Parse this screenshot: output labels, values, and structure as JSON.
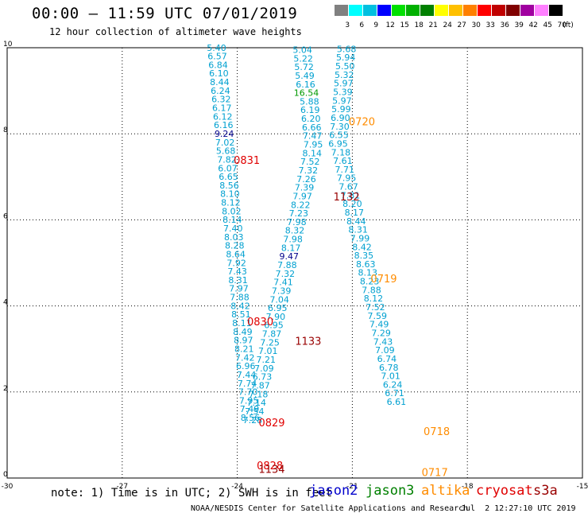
{
  "header": {
    "title": "00:00 – 11:59 UTC 07/01/2019",
    "subtitle": "12 hour collection of altimeter wave heights"
  },
  "colorbar": {
    "unit": "(ft)",
    "colors": [
      "#808080",
      "#00ffff",
      "#00c0e0",
      "#0000ff",
      "#00e000",
      "#00b000",
      "#008000",
      "#ffff00",
      "#ffc000",
      "#ff8000",
      "#ff0000",
      "#c00000",
      "#800000",
      "#a000a0",
      "#ff80ff",
      "#000000"
    ],
    "labels": [
      "3",
      "6",
      "9",
      "12",
      "15",
      "18",
      "21",
      "24",
      "27",
      "30",
      "33",
      "36",
      "39",
      "42",
      "45",
      "70"
    ]
  },
  "footer": {
    "note": "note: 1) Time is in UTC; 2) SWH is in feet",
    "legend": [
      {
        "name": "jason2",
        "color": "#0000cc"
      },
      {
        "name": "jason3",
        "color": "#008000"
      },
      {
        "name": "altika",
        "color": "#ff8c00"
      },
      {
        "name": "cryosat",
        "color": "#e00000"
      },
      {
        "name": "s3a",
        "color": "#990000"
      }
    ],
    "credit": "NOAA/NESDIS Center for Satellite Applications and Research",
    "timestamp": "Jul  2 12:27:10 UTC 2019"
  },
  "chart_data": {
    "type": "scatter",
    "title": "00:00 – 11:59 UTC 07/01/2019",
    "xlim": [
      -30,
      -15
    ],
    "ylim": [
      0,
      10
    ],
    "grid": true,
    "x_ticks": [
      "-30",
      "-27",
      "-24",
      "-21",
      "-18",
      "-15"
    ],
    "y_ticks": [
      "0",
      "2",
      "4",
      "6",
      "8",
      "10"
    ],
    "tracks": [
      {
        "name": "track-a",
        "points": [
          {
            "x": -24.54,
            "y": 9.93,
            "v": "5.40"
          },
          {
            "x": -24.52,
            "y": 9.73,
            "v": "6.57"
          },
          {
            "x": -24.5,
            "y": 9.53,
            "v": "6.84"
          },
          {
            "x": -24.48,
            "y": 9.33,
            "v": "6.10"
          },
          {
            "x": -24.46,
            "y": 9.13,
            "v": "8.44"
          },
          {
            "x": -24.44,
            "y": 8.93,
            "v": "6.24"
          },
          {
            "x": -24.42,
            "y": 8.73,
            "v": "6.32"
          },
          {
            "x": -24.4,
            "y": 8.53,
            "v": "6.17"
          },
          {
            "x": -24.38,
            "y": 8.33,
            "v": "6.12"
          },
          {
            "x": -24.36,
            "y": 8.13,
            "v": "6.16"
          },
          {
            "x": -24.34,
            "y": 7.93,
            "v": "9.24",
            "c": "#00008b"
          },
          {
            "x": -24.32,
            "y": 7.73,
            "v": "7.02"
          },
          {
            "x": -24.3,
            "y": 7.53,
            "v": "5.68"
          },
          {
            "x": -24.27,
            "y": 7.33,
            "v": "7.82"
          },
          {
            "x": -24.25,
            "y": 7.13,
            "v": "6.07"
          },
          {
            "x": -24.23,
            "y": 6.93,
            "v": "6.65"
          },
          {
            "x": -24.21,
            "y": 6.73,
            "v": "8.56"
          },
          {
            "x": -24.19,
            "y": 6.53,
            "v": "8.10"
          },
          {
            "x": -24.17,
            "y": 6.33,
            "v": "8.12"
          },
          {
            "x": -24.15,
            "y": 6.13,
            "v": "8.02"
          },
          {
            "x": -24.13,
            "y": 5.93,
            "v": "8.14"
          },
          {
            "x": -24.11,
            "y": 5.73,
            "v": "7.40"
          },
          {
            "x": -24.09,
            "y": 5.53,
            "v": "8.03"
          },
          {
            "x": -24.07,
            "y": 5.33,
            "v": "8.28"
          },
          {
            "x": -24.04,
            "y": 5.13,
            "v": "8.64"
          },
          {
            "x": -24.02,
            "y": 4.93,
            "v": "7.92"
          },
          {
            "x": -24.0,
            "y": 4.73,
            "v": "7.43"
          },
          {
            "x": -23.98,
            "y": 4.53,
            "v": "8.31"
          },
          {
            "x": -23.96,
            "y": 4.33,
            "v": "7.97"
          },
          {
            "x": -23.94,
            "y": 4.13,
            "v": "7.88"
          },
          {
            "x": -23.92,
            "y": 3.93,
            "v": "8.42"
          },
          {
            "x": -23.9,
            "y": 3.73,
            "v": "8.51"
          },
          {
            "x": -23.88,
            "y": 3.53,
            "v": "8.11"
          },
          {
            "x": -23.86,
            "y": 3.33,
            "v": "8.49"
          },
          {
            "x": -23.84,
            "y": 3.13,
            "v": "8.97"
          },
          {
            "x": -23.82,
            "y": 2.93,
            "v": "8.21"
          },
          {
            "x": -23.8,
            "y": 2.73,
            "v": "7.42"
          },
          {
            "x": -23.78,
            "y": 2.53,
            "v": "6.96"
          },
          {
            "x": -23.76,
            "y": 2.33,
            "v": "7.44"
          },
          {
            "x": -23.74,
            "y": 2.13,
            "v": "7.74"
          },
          {
            "x": -23.72,
            "y": 1.93,
            "v": "7.70"
          },
          {
            "x": -23.7,
            "y": 1.73,
            "v": "7.95"
          },
          {
            "x": -23.68,
            "y": 1.53,
            "v": "7.49"
          },
          {
            "x": -23.66,
            "y": 1.33,
            "v": "8.56"
          }
        ]
      },
      {
        "name": "track-b",
        "points": [
          {
            "x": -22.3,
            "y": 9.88,
            "v": "5.04"
          },
          {
            "x": -22.28,
            "y": 9.68,
            "v": "5.22"
          },
          {
            "x": -22.26,
            "y": 9.48,
            "v": "5.72"
          },
          {
            "x": -22.24,
            "y": 9.28,
            "v": "5.49"
          },
          {
            "x": -22.22,
            "y": 9.08,
            "v": "6.16"
          },
          {
            "x": -22.2,
            "y": 8.88,
            "v": "16.54",
            "c": "#009900"
          },
          {
            "x": -22.12,
            "y": 8.68,
            "v": "5.88"
          },
          {
            "x": -22.1,
            "y": 8.48,
            "v": "6.19"
          },
          {
            "x": -22.08,
            "y": 8.28,
            "v": "6.20"
          },
          {
            "x": -22.06,
            "y": 8.08,
            "v": "6.66"
          },
          {
            "x": -22.04,
            "y": 7.88,
            "v": "7.47"
          },
          {
            "x": -22.02,
            "y": 7.68,
            "v": "7.95"
          },
          {
            "x": -22.05,
            "y": 7.48,
            "v": "8.14"
          },
          {
            "x": -22.1,
            "y": 7.28,
            "v": "7.52"
          },
          {
            "x": -22.15,
            "y": 7.08,
            "v": "7.32"
          },
          {
            "x": -22.2,
            "y": 6.88,
            "v": "7.26"
          },
          {
            "x": -22.25,
            "y": 6.68,
            "v": "7.39"
          },
          {
            "x": -22.3,
            "y": 6.48,
            "v": "7.97"
          },
          {
            "x": -22.35,
            "y": 6.28,
            "v": "8.22"
          },
          {
            "x": -22.4,
            "y": 6.08,
            "v": "7.23"
          },
          {
            "x": -22.45,
            "y": 5.88,
            "v": "7.98"
          },
          {
            "x": -22.5,
            "y": 5.68,
            "v": "8.32"
          },
          {
            "x": -22.55,
            "y": 5.48,
            "v": "7.98"
          },
          {
            "x": -22.6,
            "y": 5.28,
            "v": "8.17"
          },
          {
            "x": -22.65,
            "y": 5.08,
            "v": "9.47",
            "c": "#00008b"
          },
          {
            "x": -22.7,
            "y": 4.88,
            "v": "7.88"
          },
          {
            "x": -22.75,
            "y": 4.68,
            "v": "7.32"
          },
          {
            "x": -22.8,
            "y": 4.48,
            "v": "7.41"
          },
          {
            "x": -22.85,
            "y": 4.28,
            "v": "7.39"
          },
          {
            "x": -22.9,
            "y": 4.08,
            "v": "7.04"
          },
          {
            "x": -22.95,
            "y": 3.88,
            "v": "6.95"
          },
          {
            "x": -23.0,
            "y": 3.68,
            "v": "7.90"
          },
          {
            "x": -23.05,
            "y": 3.48,
            "v": "6.95"
          },
          {
            "x": -23.1,
            "y": 3.28,
            "v": "7.87"
          },
          {
            "x": -23.15,
            "y": 3.08,
            "v": "7.25"
          },
          {
            "x": -23.2,
            "y": 2.88,
            "v": "7.01"
          },
          {
            "x": -23.25,
            "y": 2.68,
            "v": "7.21"
          },
          {
            "x": -23.3,
            "y": 2.48,
            "v": "7.09"
          },
          {
            "x": -23.35,
            "y": 2.28,
            "v": "6.73"
          },
          {
            "x": -23.4,
            "y": 2.08,
            "v": "7.87"
          },
          {
            "x": -23.45,
            "y": 1.88,
            "v": "7.18"
          },
          {
            "x": -23.5,
            "y": 1.68,
            "v": "7.14"
          },
          {
            "x": -23.55,
            "y": 1.48,
            "v": "7.54"
          },
          {
            "x": -23.6,
            "y": 1.28,
            "v": "7.28"
          }
        ]
      },
      {
        "name": "track-c",
        "points": [
          {
            "x": -21.15,
            "y": 9.9,
            "v": "5.68"
          },
          {
            "x": -21.17,
            "y": 9.7,
            "v": "5.94"
          },
          {
            "x": -21.19,
            "y": 9.5,
            "v": "5.50"
          },
          {
            "x": -21.21,
            "y": 9.3,
            "v": "5.32"
          },
          {
            "x": -21.23,
            "y": 9.1,
            "v": "5.97"
          },
          {
            "x": -21.25,
            "y": 8.9,
            "v": "5.39"
          },
          {
            "x": -21.27,
            "y": 8.7,
            "v": "5.97"
          },
          {
            "x": -21.29,
            "y": 8.5,
            "v": "5.99"
          },
          {
            "x": -21.31,
            "y": 8.3,
            "v": "6.90"
          },
          {
            "x": -21.33,
            "y": 8.1,
            "v": "7.30"
          },
          {
            "x": -21.35,
            "y": 7.9,
            "v": "6.55"
          },
          {
            "x": -21.37,
            "y": 7.7,
            "v": "6.95"
          },
          {
            "x": -21.3,
            "y": 7.5,
            "v": "7.18"
          },
          {
            "x": -21.25,
            "y": 7.3,
            "v": "7.61"
          },
          {
            "x": -21.2,
            "y": 7.1,
            "v": "7.71"
          },
          {
            "x": -21.15,
            "y": 6.9,
            "v": "7.95"
          },
          {
            "x": -21.1,
            "y": 6.7,
            "v": "7.67"
          },
          {
            "x": -21.05,
            "y": 6.5,
            "v": "7.81"
          },
          {
            "x": -21.0,
            "y": 6.3,
            "v": "8.20"
          },
          {
            "x": -20.95,
            "y": 6.1,
            "v": "8.17"
          },
          {
            "x": -20.9,
            "y": 5.9,
            "v": "8.44"
          },
          {
            "x": -20.85,
            "y": 5.7,
            "v": "8.31"
          },
          {
            "x": -20.8,
            "y": 5.5,
            "v": "7.99"
          },
          {
            "x": -20.75,
            "y": 5.3,
            "v": "8.42"
          },
          {
            "x": -20.7,
            "y": 5.1,
            "v": "8.35"
          },
          {
            "x": -20.65,
            "y": 4.9,
            "v": "8.63"
          },
          {
            "x": -20.6,
            "y": 4.7,
            "v": "8.13"
          },
          {
            "x": -20.55,
            "y": 4.5,
            "v": "8.23"
          },
          {
            "x": -20.5,
            "y": 4.3,
            "v": "7.88"
          },
          {
            "x": -20.45,
            "y": 4.1,
            "v": "8.12"
          },
          {
            "x": -20.4,
            "y": 3.9,
            "v": "7.52"
          },
          {
            "x": -20.35,
            "y": 3.7,
            "v": "7.59"
          },
          {
            "x": -20.3,
            "y": 3.5,
            "v": "7.49"
          },
          {
            "x": -20.25,
            "y": 3.3,
            "v": "7.29"
          },
          {
            "x": -20.2,
            "y": 3.1,
            "v": "7.43"
          },
          {
            "x": -20.15,
            "y": 2.9,
            "v": "7.09"
          },
          {
            "x": -20.1,
            "y": 2.7,
            "v": "6.74"
          },
          {
            "x": -20.05,
            "y": 2.5,
            "v": "6.78"
          },
          {
            "x": -20.0,
            "y": 2.3,
            "v": "7.01"
          },
          {
            "x": -19.95,
            "y": 2.1,
            "v": "6.24"
          },
          {
            "x": -19.9,
            "y": 1.9,
            "v": "6.71"
          },
          {
            "x": -19.85,
            "y": 1.7,
            "v": "6.61"
          }
        ]
      }
    ],
    "time_labels": [
      {
        "x": -20.75,
        "y": 8.2,
        "v": "0720",
        "c": "#ff8c00"
      },
      {
        "x": -23.75,
        "y": 7.3,
        "v": "0831",
        "c": "#e00000"
      },
      {
        "x": -21.15,
        "y": 6.45,
        "v": "1132",
        "c": "#990000"
      },
      {
        "x": -20.18,
        "y": 4.55,
        "v": "0719",
        "c": "#ff8c00"
      },
      {
        "x": -23.4,
        "y": 3.55,
        "v": "0830",
        "c": "#e00000"
      },
      {
        "x": -22.15,
        "y": 3.1,
        "v": "1133",
        "c": "#990000"
      },
      {
        "x": -23.1,
        "y": 1.2,
        "v": "0829",
        "c": "#e00000"
      },
      {
        "x": -18.8,
        "y": 1.0,
        "v": "0718",
        "c": "#ff8c00"
      },
      {
        "x": -23.15,
        "y": 0.2,
        "v": "0828",
        "c": "#e00000"
      },
      {
        "x": -23.1,
        "y": 0.12,
        "v": "1134",
        "c": "#990000"
      },
      {
        "x": -18.85,
        "y": 0.05,
        "v": "0717",
        "c": "#ff8c00"
      }
    ]
  }
}
